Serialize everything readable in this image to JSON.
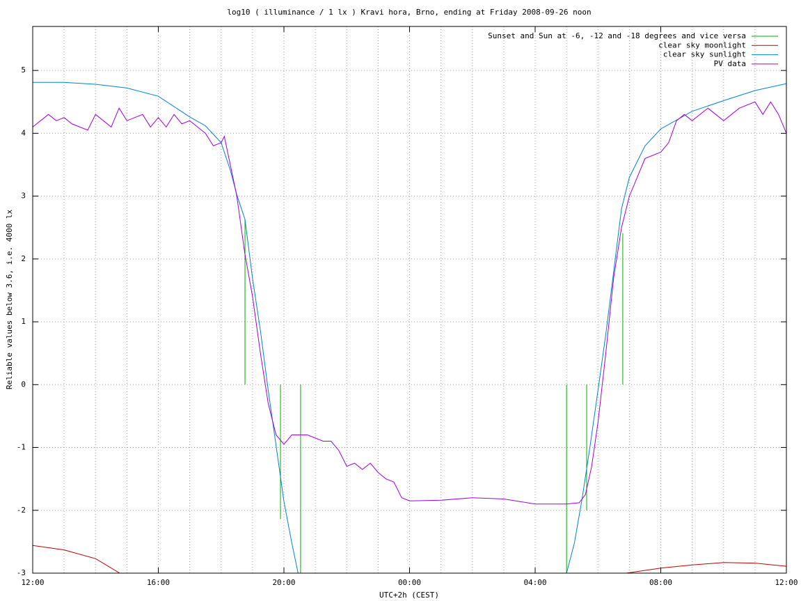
{
  "chart_data": {
    "type": "line",
    "title": "log10 ( illuminance / 1 lx ) Kravi hora, Brno, ending at Friday 2008-09-26 noon",
    "x_label": "UTC+2h (CEST)",
    "y_label": "Reliable values below 3.6, i.e. 4000 lx",
    "xlim": [
      0,
      24
    ],
    "xticks": [
      {
        "value": 0,
        "label": "12:00"
      },
      {
        "value": 4,
        "label": "16:00"
      },
      {
        "value": 8,
        "label": "20:00"
      },
      {
        "value": 12,
        "label": "00:00"
      },
      {
        "value": 16,
        "label": "04:00"
      },
      {
        "value": 20,
        "label": "08:00"
      },
      {
        "value": 24,
        "label": "12:00"
      }
    ],
    "ylim": [
      -3,
      5.7
    ],
    "yticks": [
      -3,
      -2,
      -1,
      0,
      1,
      2,
      3,
      4,
      5
    ],
    "grid": true,
    "legend": "top-right",
    "series": [
      {
        "name": "Sunset and Sun at -6, -12 and -18 degrees and vice versa",
        "color": "#00b000",
        "style": "impulses",
        "x": [
          6.76,
          7.89,
          8.53,
          17.0,
          17.64,
          18.79
        ],
        "values": [
          2.63,
          -2.14,
          -3,
          -3,
          -2.0,
          2.41
        ]
      },
      {
        "name": "clear sky moonlight",
        "color": "#c00000",
        "style": "line",
        "x": [
          0,
          1,
          2,
          2.77,
          12,
          18.9,
          20,
          21,
          22,
          23,
          24
        ],
        "values": [
          -2.56,
          -2.63,
          -2.77,
          -3,
          null,
          -3,
          -2.92,
          -2.87,
          -2.83,
          -2.84,
          -2.89
        ]
      },
      {
        "name": "clear sky sunlight",
        "color": "#0080d0",
        "style": "line",
        "x": [
          0,
          1,
          2,
          3,
          4,
          5,
          5.5,
          6,
          6.3,
          6.5,
          6.76,
          7,
          7.25,
          7.5,
          7.75,
          8,
          8.25,
          8.45,
          12,
          17,
          17.25,
          17.5,
          17.75,
          18,
          18.25,
          18.5,
          18.75,
          19,
          19.5,
          20,
          21,
          22,
          23,
          24
        ],
        "values": [
          4.81,
          4.81,
          4.78,
          4.72,
          4.59,
          4.26,
          4.12,
          3.85,
          3.4,
          3.02,
          2.63,
          1.69,
          0.86,
          -0.09,
          -0.97,
          -1.86,
          -2.52,
          -3,
          null,
          -3,
          -2.52,
          -1.8,
          -0.97,
          -0.09,
          0.8,
          1.8,
          2.8,
          3.3,
          3.8,
          4.07,
          4.35,
          4.52,
          4.68,
          4.79
        ]
      },
      {
        "name": "PV data",
        "color": "#a000e0",
        "style": "line",
        "x": [
          0,
          0.25,
          0.5,
          0.75,
          1,
          1.25,
          1.5,
          1.75,
          2,
          2.25,
          2.5,
          2.75,
          3,
          3.25,
          3.5,
          3.75,
          4,
          4.25,
          4.5,
          4.75,
          5,
          5.25,
          5.5,
          5.75,
          6,
          6.1,
          6.25,
          6.5,
          6.75,
          7,
          7.25,
          7.5,
          7.75,
          8,
          8.25,
          8.5,
          8.75,
          9,
          9.25,
          9.5,
          9.75,
          10,
          10.25,
          10.5,
          10.75,
          11,
          11.25,
          11.5,
          11.75,
          12,
          13,
          14,
          15,
          16,
          17,
          17.4,
          17.6,
          17.8,
          18,
          18.25,
          18.5,
          18.75,
          19,
          19.25,
          19.5,
          20,
          20.25,
          20.5,
          20.75,
          21,
          21.5,
          22,
          22.5,
          23,
          23.25,
          23.5,
          23.75,
          24
        ],
        "values": [
          4.1,
          4.2,
          4.3,
          4.2,
          4.25,
          4.15,
          4.1,
          4.05,
          4.3,
          4.2,
          4.1,
          4.4,
          4.2,
          4.25,
          4.3,
          4.1,
          4.25,
          4.1,
          4.3,
          4.15,
          4.2,
          4.1,
          4.0,
          3.8,
          3.85,
          3.95,
          3.6,
          3.0,
          2.1,
          1.4,
          0.5,
          -0.3,
          -0.8,
          -0.95,
          -0.8,
          -0.8,
          -0.8,
          -0.85,
          -0.9,
          -0.9,
          -1.05,
          -1.3,
          -1.25,
          -1.35,
          -1.25,
          -1.4,
          -1.5,
          -1.55,
          -1.8,
          -1.85,
          -1.84,
          -1.8,
          -1.82,
          -1.9,
          -1.9,
          -1.88,
          -1.75,
          -1.3,
          -0.6,
          0.5,
          1.7,
          2.5,
          3.0,
          3.3,
          3.6,
          3.7,
          3.85,
          4.2,
          4.3,
          4.2,
          4.4,
          4.2,
          4.4,
          4.5,
          4.3,
          4.5,
          4.3,
          4.0
        ]
      }
    ]
  }
}
